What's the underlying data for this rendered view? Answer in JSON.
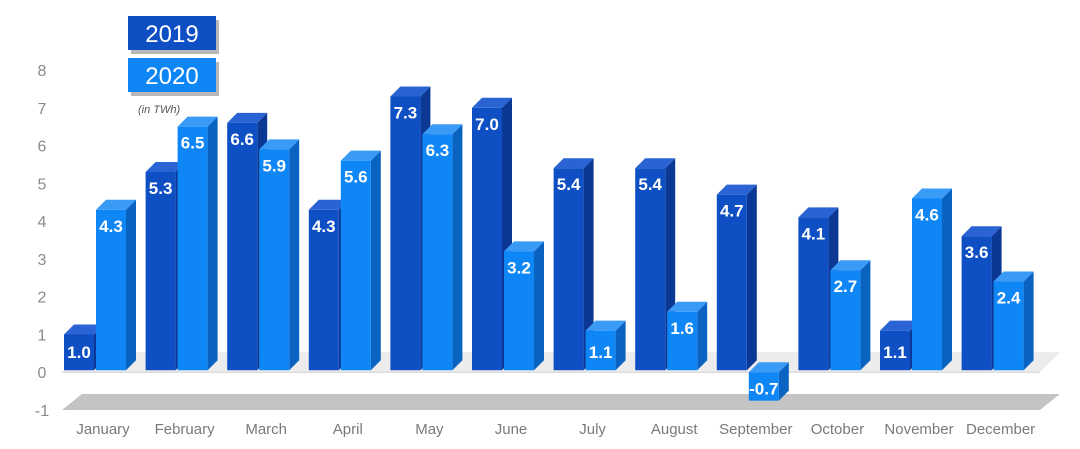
{
  "chart_data": {
    "type": "bar",
    "unit_note": "(in TWh)",
    "categories": [
      "January",
      "February",
      "March",
      "April",
      "May",
      "June",
      "July",
      "August",
      "September",
      "October",
      "November",
      "December"
    ],
    "series": [
      {
        "name": "2019",
        "values": [
          1.0,
          5.3,
          6.6,
          4.3,
          7.3,
          7.0,
          5.4,
          5.4,
          4.7,
          4.1,
          1.1,
          3.6
        ],
        "color": "#0f4fc4",
        "side_color": "#0a3894",
        "top_color": "#2a63d3"
      },
      {
        "name": "2020",
        "values": [
          4.3,
          6.5,
          5.9,
          5.6,
          6.3,
          3.2,
          1.1,
          1.6,
          -0.7,
          2.7,
          4.6,
          2.4
        ],
        "color": "#0f86f5",
        "side_color": "#0a63c0",
        "top_color": "#3a9bf7"
      }
    ],
    "data_labels": [
      [
        "1.0",
        "5.3",
        "6.6",
        "4.3",
        "7.3",
        "7.0",
        "5.4",
        "5.4",
        "4.7",
        "4.1",
        "1.1",
        "3.6"
      ],
      [
        "4.3",
        "6.5",
        "5.9",
        "5.6",
        "6.3",
        "3.2",
        "1.1",
        "1.6",
        "-0.7",
        "2.7",
        "4.6",
        "2.4"
      ]
    ],
    "yticks": [
      "-1",
      "0",
      "1",
      "2",
      "3",
      "4",
      "5",
      "6",
      "7",
      "8"
    ],
    "ylim": [
      -1,
      8
    ],
    "grid": false,
    "legend_position": "top-left",
    "floor_color": "#c4c4c4"
  }
}
